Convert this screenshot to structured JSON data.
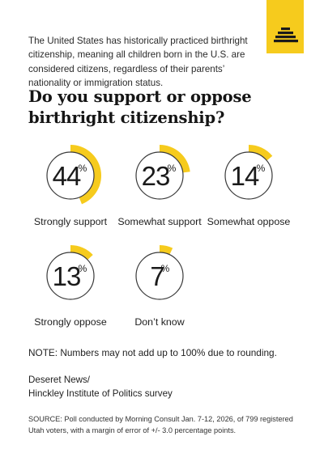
{
  "intro": "The United States has historically practiced birthright citizenship, meaning all children born in the U.S. are considered citizens, regardless of their parents’ nationality or immigration status.",
  "headline_line1": "Do you support or oppose",
  "headline_line2": "birthright citizenship?",
  "chart_data": {
    "type": "pie",
    "title": "Do you support or oppose birthright citizenship?",
    "unit": "%",
    "categories": [
      "Strongly support",
      "Somewhat support",
      "Somewhat oppose",
      "Strongly oppose",
      "Don’t know"
    ],
    "values": [
      44,
      23,
      14,
      13,
      7
    ],
    "colors": {
      "fill": "#f6cb1d",
      "ring": "#3a3a3a"
    }
  },
  "note": "NOTE: Numbers may not add up to 100% due to rounding.",
  "credit_line1": "Deseret News/",
  "credit_line2": "Hinckley Institute of Politics survey",
  "source": "SOURCE: Poll conducted by Morning Consult Jan. 7-12, 2026, of 799 registered Utah voters, with a margin of error of +/- 3.0 percentage points.",
  "colors": {
    "accent": "#f6cb1d",
    "logo_mark": "#1a1a1a"
  },
  "logo_icon": "beehive-icon"
}
